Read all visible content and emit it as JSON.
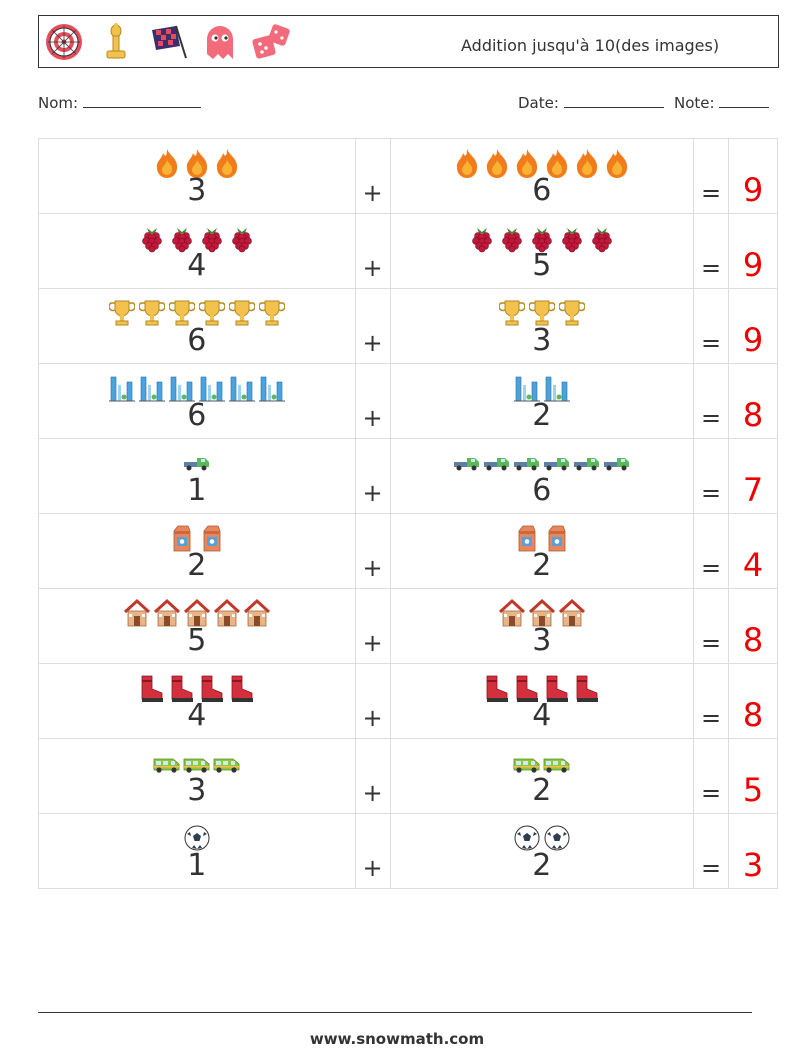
{
  "header": {
    "title": "Addition jusqu'à 10(des images)",
    "icons": [
      "dartboard-icon",
      "chess-bishop-icon",
      "racing-flag-icon",
      "ghost-icon",
      "dice-icon"
    ]
  },
  "meta": {
    "name_label": "Nom:",
    "date_label": "Date:",
    "note_label": "Note:"
  },
  "operators": {
    "plus": "+",
    "equals": "="
  },
  "rows": [
    {
      "icon": "fire",
      "a": "3",
      "b": "6",
      "result": "9"
    },
    {
      "icon": "raspberry",
      "a": "4",
      "b": "5",
      "result": "9"
    },
    {
      "icon": "trophy",
      "a": "6",
      "b": "3",
      "result": "9"
    },
    {
      "icon": "city-buildings",
      "a": "6",
      "b": "2",
      "result": "8"
    },
    {
      "icon": "tow-truck",
      "a": "1",
      "b": "6",
      "result": "7"
    },
    {
      "icon": "milk-carton",
      "a": "2",
      "b": "2",
      "result": "4"
    },
    {
      "icon": "house",
      "a": "5",
      "b": "3",
      "result": "8"
    },
    {
      "icon": "boot",
      "a": "4",
      "b": "4",
      "result": "8"
    },
    {
      "icon": "van",
      "a": "3",
      "b": "2",
      "result": "5"
    },
    {
      "icon": "soccer-ball",
      "a": "1",
      "b": "2",
      "result": "3"
    }
  ],
  "footer": {
    "text": "www.snowmath.com"
  }
}
